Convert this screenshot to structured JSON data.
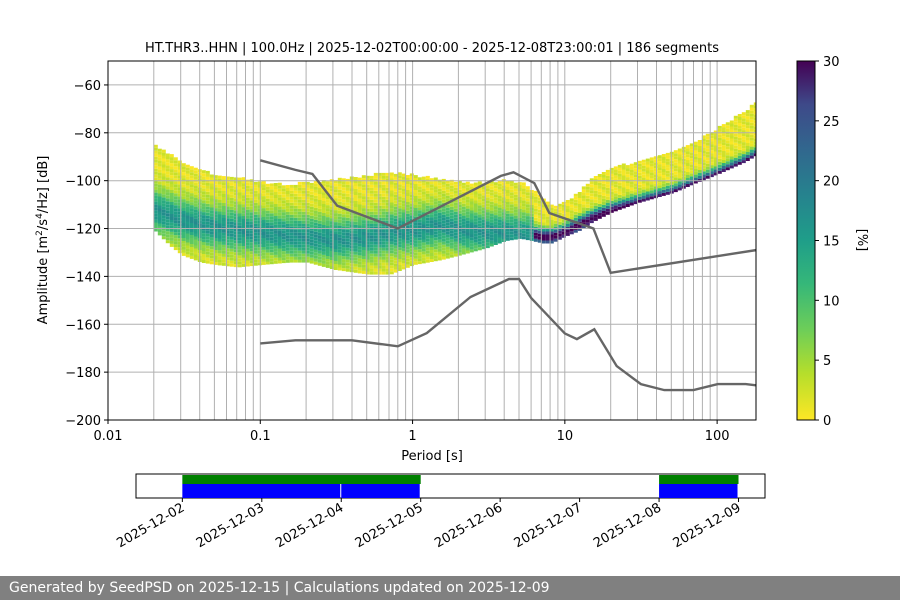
{
  "chart_data": [
    {
      "type": "heatmap",
      "title": "HT.THR3..HHN | 100.0Hz | 2025-12-02T00:00:00 - 2025-12-08T23:00:01 | 186 segments",
      "xlabel": "Period [s]",
      "ylabel_parts": {
        "pre": "Amplitude [m",
        "sup1": "2",
        "mid": "/s",
        "sup2": "4",
        "post": "/Hz] [dB]"
      },
      "x_scale": "log",
      "xlim": [
        0.01,
        180
      ],
      "ylim": [
        -200,
        -50
      ],
      "x_ticks": [
        {
          "value": 0.01,
          "label": "0.01"
        },
        {
          "value": 0.1,
          "label": "0.1"
        },
        {
          "value": 1,
          "label": "1"
        },
        {
          "value": 10,
          "label": "10"
        },
        {
          "value": 100,
          "label": "100"
        }
      ],
      "y_ticks": [
        {
          "value": -60,
          "label": "−60"
        },
        {
          "value": -80,
          "label": "−80"
        },
        {
          "value": -100,
          "label": "−100"
        },
        {
          "value": -120,
          "label": "−120"
        },
        {
          "value": -140,
          "label": "−140"
        },
        {
          "value": -160,
          "label": "−160"
        },
        {
          "value": -180,
          "label": "−180"
        },
        {
          "value": -200,
          "label": "−200"
        }
      ],
      "grid": true,
      "colormap": "viridis_r",
      "colorbar": {
        "label": "[%]",
        "range": [
          0,
          30
        ],
        "ticks": [
          {
            "value": 0,
            "label": "0"
          },
          {
            "value": 5,
            "label": "5"
          },
          {
            "value": 10,
            "label": "10"
          },
          {
            "value": 15,
            "label": "15"
          },
          {
            "value": 20,
            "label": "20"
          },
          {
            "value": 25,
            "label": "25"
          },
          {
            "value": 30,
            "label": "30"
          }
        ]
      },
      "psd_envelope": {
        "period": [
          0.02,
          0.025,
          0.03,
          0.04,
          0.05,
          0.07,
          0.1,
          0.15,
          0.2,
          0.3,
          0.5,
          0.7,
          1,
          1.5,
          2,
          3,
          4,
          5,
          6,
          7,
          8,
          10,
          12,
          15,
          20,
          30,
          50,
          70,
          100,
          150,
          180
        ],
        "upper": [
          -85,
          -88,
          -92,
          -95,
          -97,
          -98,
          -100,
          -101,
          -100,
          -99,
          -97,
          -96,
          -97,
          -99,
          -100,
          -100,
          -99,
          -100,
          -103,
          -107,
          -110,
          -108,
          -104,
          -98,
          -94,
          -91,
          -87,
          -83,
          -77,
          -70,
          -66
        ],
        "lower": [
          -120,
          -126,
          -130,
          -133,
          -134,
          -135,
          -134,
          -133,
          -133,
          -136,
          -138,
          -138,
          -134,
          -132,
          -130,
          -127,
          -124,
          -123,
          -124,
          -125,
          -125,
          -122,
          -120,
          -116,
          -112,
          -108,
          -104,
          -100,
          -96,
          -91,
          -88
        ]
      },
      "psd_mode": {
        "period": [
          0.02,
          0.03,
          0.05,
          0.07,
          0.1,
          0.2,
          0.3,
          0.5,
          0.7,
          1,
          1.5,
          2,
          3,
          4,
          5,
          6,
          7,
          8,
          10,
          12,
          15,
          20,
          30,
          50,
          70,
          100,
          150,
          180
        ],
        "db": [
          -112,
          -116,
          -119,
          -120,
          -121,
          -123,
          -124,
          -123,
          -121,
          -120,
          -118,
          -120,
          -121,
          -121,
          -122,
          -122,
          -123,
          -123,
          -121,
          -118,
          -115,
          -112,
          -109,
          -105,
          -101,
          -97,
          -92,
          -89
        ]
      },
      "nhnm": {
        "period": [
          0.1,
          0.17,
          0.22,
          0.32,
          0.8,
          3.8,
          4.6,
          6.3,
          7.9,
          15.4,
          20,
          180
        ],
        "db": [
          -91.5,
          -95.5,
          -97.2,
          -110.5,
          -120,
          -98,
          -96.5,
          -101,
          -113.5,
          -120,
          -138.5,
          -129
        ]
      },
      "nlnm": {
        "period": [
          0.1,
          0.17,
          0.4,
          0.8,
          1.24,
          2.4,
          4.3,
          5,
          6,
          10,
          12,
          15.6,
          21.9,
          31.6,
          45,
          70,
          101,
          154,
          180
        ],
        "db": [
          -168,
          -166.7,
          -166.7,
          -169.2,
          -163.7,
          -148.6,
          -141.1,
          -141.1,
          -149,
          -163.8,
          -166.2,
          -162.1,
          -177.5,
          -185,
          -187.5,
          -187.5,
          -185,
          -185,
          -185.5
        ]
      }
    },
    {
      "type": "timeline",
      "date_range": [
        "2025-12-01T10:00",
        "2025-12-09T08:00"
      ],
      "x_ticks": [
        {
          "value": "2025-12-02",
          "label": "2025-12-02"
        },
        {
          "value": "2025-12-03",
          "label": "2025-12-03"
        },
        {
          "value": "2025-12-04",
          "label": "2025-12-04"
        },
        {
          "value": "2025-12-05",
          "label": "2025-12-05"
        },
        {
          "value": "2025-12-06",
          "label": "2025-12-06"
        },
        {
          "value": "2025-12-07",
          "label": "2025-12-07"
        },
        {
          "value": "2025-12-08",
          "label": "2025-12-08"
        },
        {
          "value": "2025-12-09",
          "label": "2025-12-09"
        }
      ],
      "green_spans": [
        [
          "2025-12-02T00:00",
          "2025-12-05T00:00"
        ],
        [
          "2025-12-08T00:00",
          "2025-12-09T00:00"
        ]
      ],
      "blue_spans": [
        [
          "2025-12-02T00:00",
          "2025-12-04T00:00"
        ],
        [
          "2025-12-04T00:00",
          "2025-12-05T00:00"
        ],
        [
          "2025-12-08T00:00",
          "2025-12-09T00:00"
        ]
      ],
      "colors": {
        "green": "#008000",
        "blue": "#0000ff"
      }
    }
  ],
  "colors": {
    "model_line": "#666666",
    "grid": "#b0b0b0"
  },
  "footer": {
    "text": "Generated by SeedPSD on 2025-12-15 | Calculations updated on 2025-12-09"
  }
}
